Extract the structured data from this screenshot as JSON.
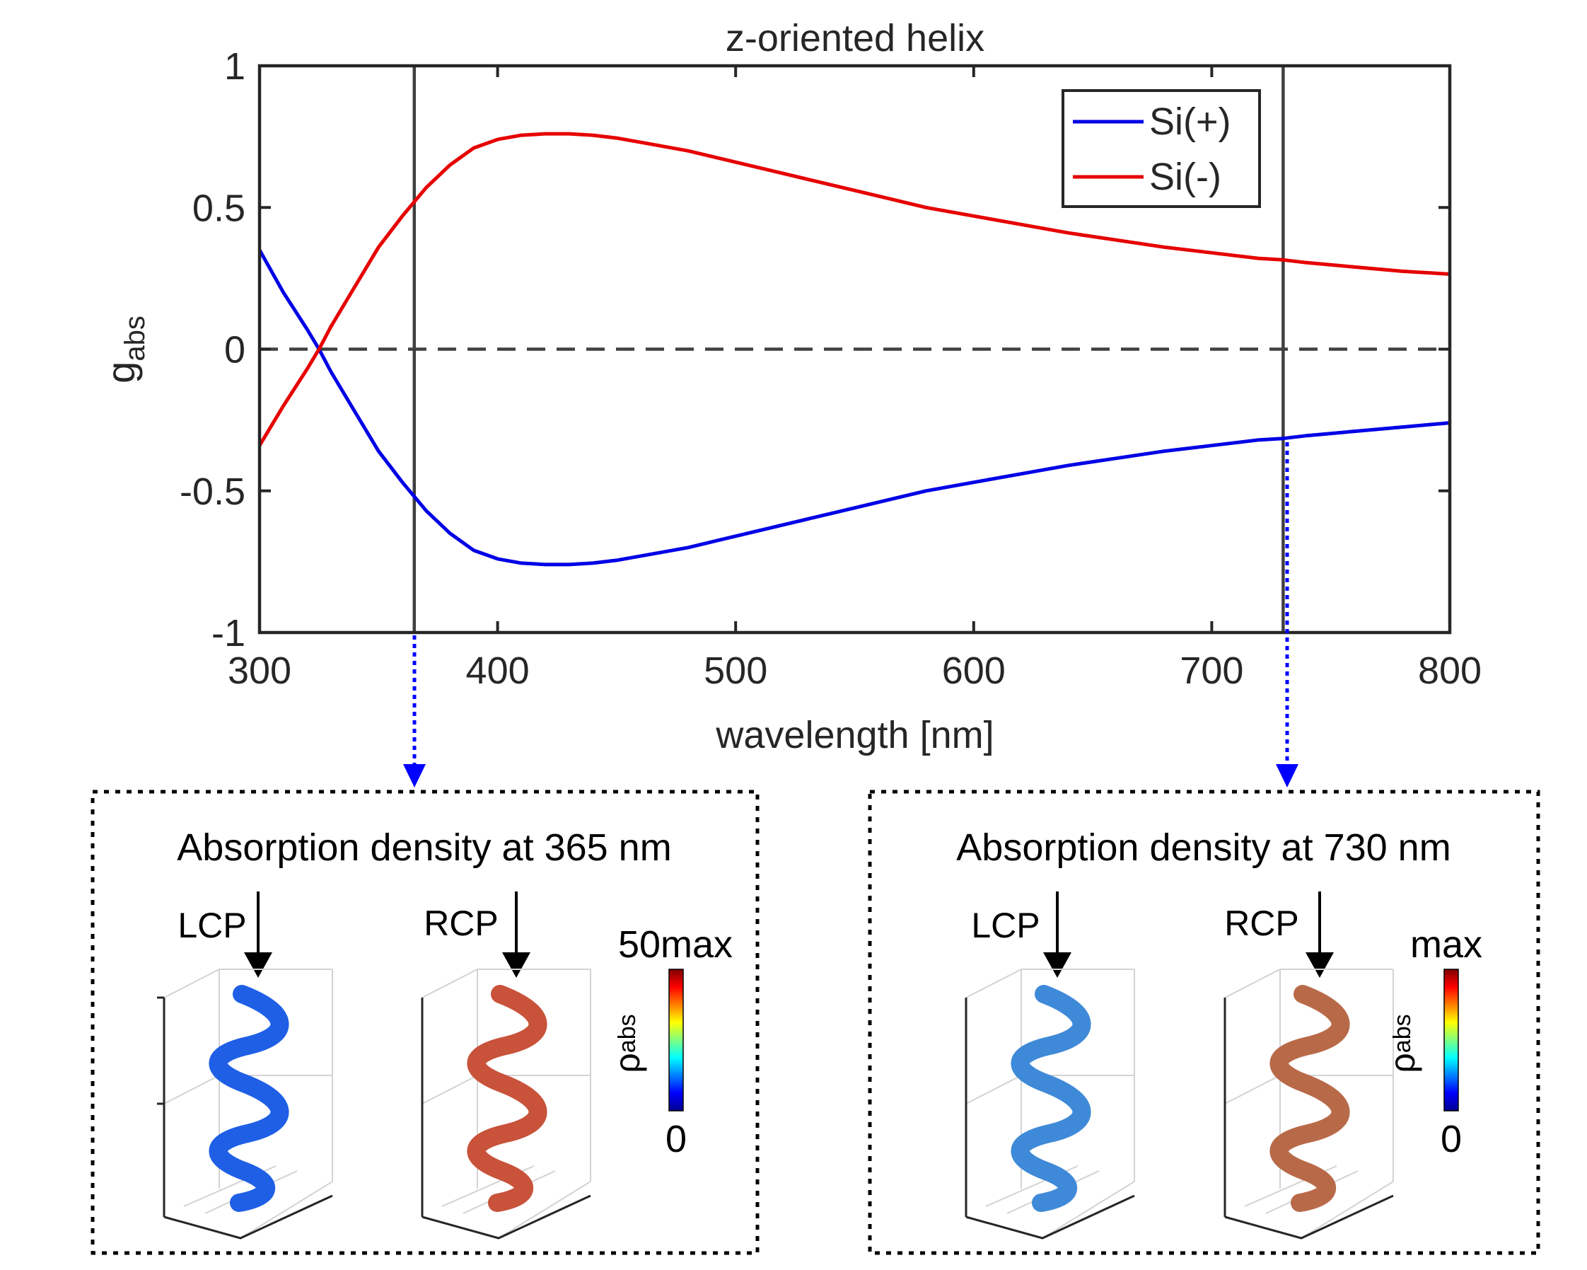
{
  "chart_data": {
    "type": "line",
    "title": "z-oriented helix",
    "xlabel": "wavelength [nm]",
    "ylabel_main": "g",
    "ylabel_sub": "abs",
    "xlim": [
      300,
      800
    ],
    "ylim": [
      -1,
      1
    ],
    "xticks": [
      300,
      400,
      500,
      600,
      700,
      800
    ],
    "xtick_labels": [
      "300",
      "400",
      "500",
      "600",
      "700",
      "800"
    ],
    "yticks": [
      -1,
      -0.5,
      0,
      0.5,
      1
    ],
    "ytick_labels": [
      "-1",
      "-0.5",
      "0",
      "0.5",
      "1"
    ],
    "legend_position": "top-right",
    "markers": [
      365,
      730
    ],
    "zero_line": 0,
    "series": [
      {
        "name": "Si(+)",
        "color": "#0000e6",
        "x": [
          300,
          310,
          320,
          325,
          330,
          340,
          350,
          360,
          365,
          370,
          380,
          390,
          400,
          410,
          420,
          430,
          440,
          450,
          460,
          480,
          500,
          520,
          540,
          560,
          580,
          600,
          620,
          640,
          660,
          680,
          700,
          720,
          730,
          740,
          760,
          780,
          800
        ],
        "values": [
          0.35,
          0.2,
          0.07,
          0.0,
          -0.08,
          -0.22,
          -0.36,
          -0.47,
          -0.52,
          -0.57,
          -0.65,
          -0.71,
          -0.74,
          -0.755,
          -0.76,
          -0.76,
          -0.755,
          -0.745,
          -0.73,
          -0.7,
          -0.66,
          -0.62,
          -0.58,
          -0.54,
          -0.5,
          -0.47,
          -0.44,
          -0.41,
          -0.385,
          -0.36,
          -0.34,
          -0.32,
          -0.315,
          -0.305,
          -0.29,
          -0.275,
          -0.26
        ]
      },
      {
        "name": "Si(-)",
        "color": "#e60000",
        "x": [
          300,
          310,
          320,
          325,
          330,
          340,
          350,
          360,
          365,
          370,
          380,
          390,
          400,
          410,
          420,
          430,
          440,
          450,
          460,
          480,
          500,
          520,
          540,
          560,
          580,
          600,
          620,
          640,
          660,
          680,
          700,
          720,
          730,
          740,
          760,
          780,
          800
        ],
        "values": [
          -0.34,
          -0.2,
          -0.07,
          0.0,
          0.08,
          0.22,
          0.36,
          0.47,
          0.52,
          0.57,
          0.65,
          0.71,
          0.74,
          0.755,
          0.76,
          0.76,
          0.755,
          0.745,
          0.73,
          0.7,
          0.66,
          0.62,
          0.58,
          0.54,
          0.5,
          0.47,
          0.44,
          0.41,
          0.385,
          0.36,
          0.34,
          0.32,
          0.315,
          0.305,
          0.29,
          0.275,
          0.265
        ]
      }
    ]
  },
  "panels": [
    {
      "title": "Absorption density at 365 nm",
      "lcp_label": "LCP",
      "rcp_label": "RCP",
      "colorbar_max": "50max",
      "colorbar_min": "0",
      "colorbar_label_main": "ρ",
      "colorbar_label_sub": "abs",
      "lcp_color": "#1f5fe6",
      "rcp_color": "#c8523a"
    },
    {
      "title": "Absorption density at 730 nm",
      "lcp_label": "LCP",
      "rcp_label": "RCP",
      "colorbar_max": "max",
      "colorbar_min": "0",
      "colorbar_label_main": "ρ",
      "colorbar_label_sub": "abs",
      "lcp_color": "#3f8ad8",
      "rcp_color": "#b86a48"
    }
  ],
  "colors": {
    "marker_arrow": "#0000ff",
    "axis": "#262626",
    "marker_line": "#404040"
  }
}
